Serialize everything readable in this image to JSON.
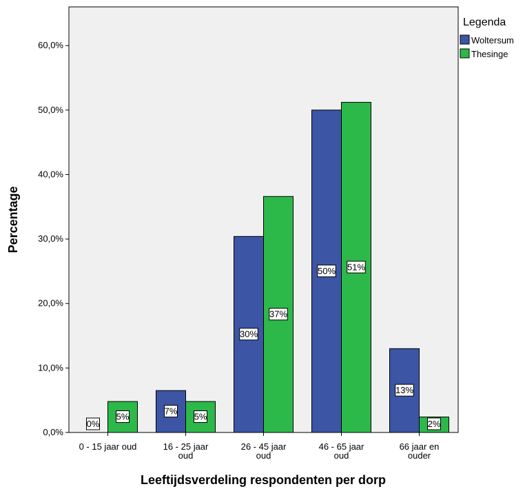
{
  "chart_data": {
    "type": "bar",
    "xlabel": "Leeftijdsverdeling respondenten per dorp",
    "ylabel": "Percentage",
    "ylim": [
      0,
      66
    ],
    "yticks": [
      0,
      10,
      20,
      30,
      40,
      50,
      60
    ],
    "ytick_labels": [
      "0,0%",
      "10,0%",
      "20,0%",
      "30,0%",
      "40,0%",
      "50,0%",
      "60,0%"
    ],
    "categories": [
      [
        "0 - 15 jaar oud"
      ],
      [
        "16 - 25 jaar",
        "oud"
      ],
      [
        "26 - 45 jaar",
        "oud"
      ],
      [
        "46 - 65 jaar",
        "oud"
      ],
      [
        "66 jaar en",
        "ouder"
      ]
    ],
    "series": [
      {
        "name": "Woltersum",
        "color": "#3c55a5",
        "values": [
          0,
          6.5,
          30.4,
          50.0,
          13.0
        ],
        "labels": [
          "0%",
          "7%",
          "30%",
          "50%",
          "13%"
        ]
      },
      {
        "name": "Thesinge",
        "color": "#2db84a",
        "values": [
          4.8,
          4.8,
          36.6,
          51.2,
          2.4
        ],
        "labels": [
          "5%",
          "5%",
          "37%",
          "51%",
          "2%"
        ]
      }
    ],
    "legend": {
      "title": "Legenda",
      "position": "right"
    },
    "grid": false,
    "plot_background": "#f0f0f0"
  }
}
